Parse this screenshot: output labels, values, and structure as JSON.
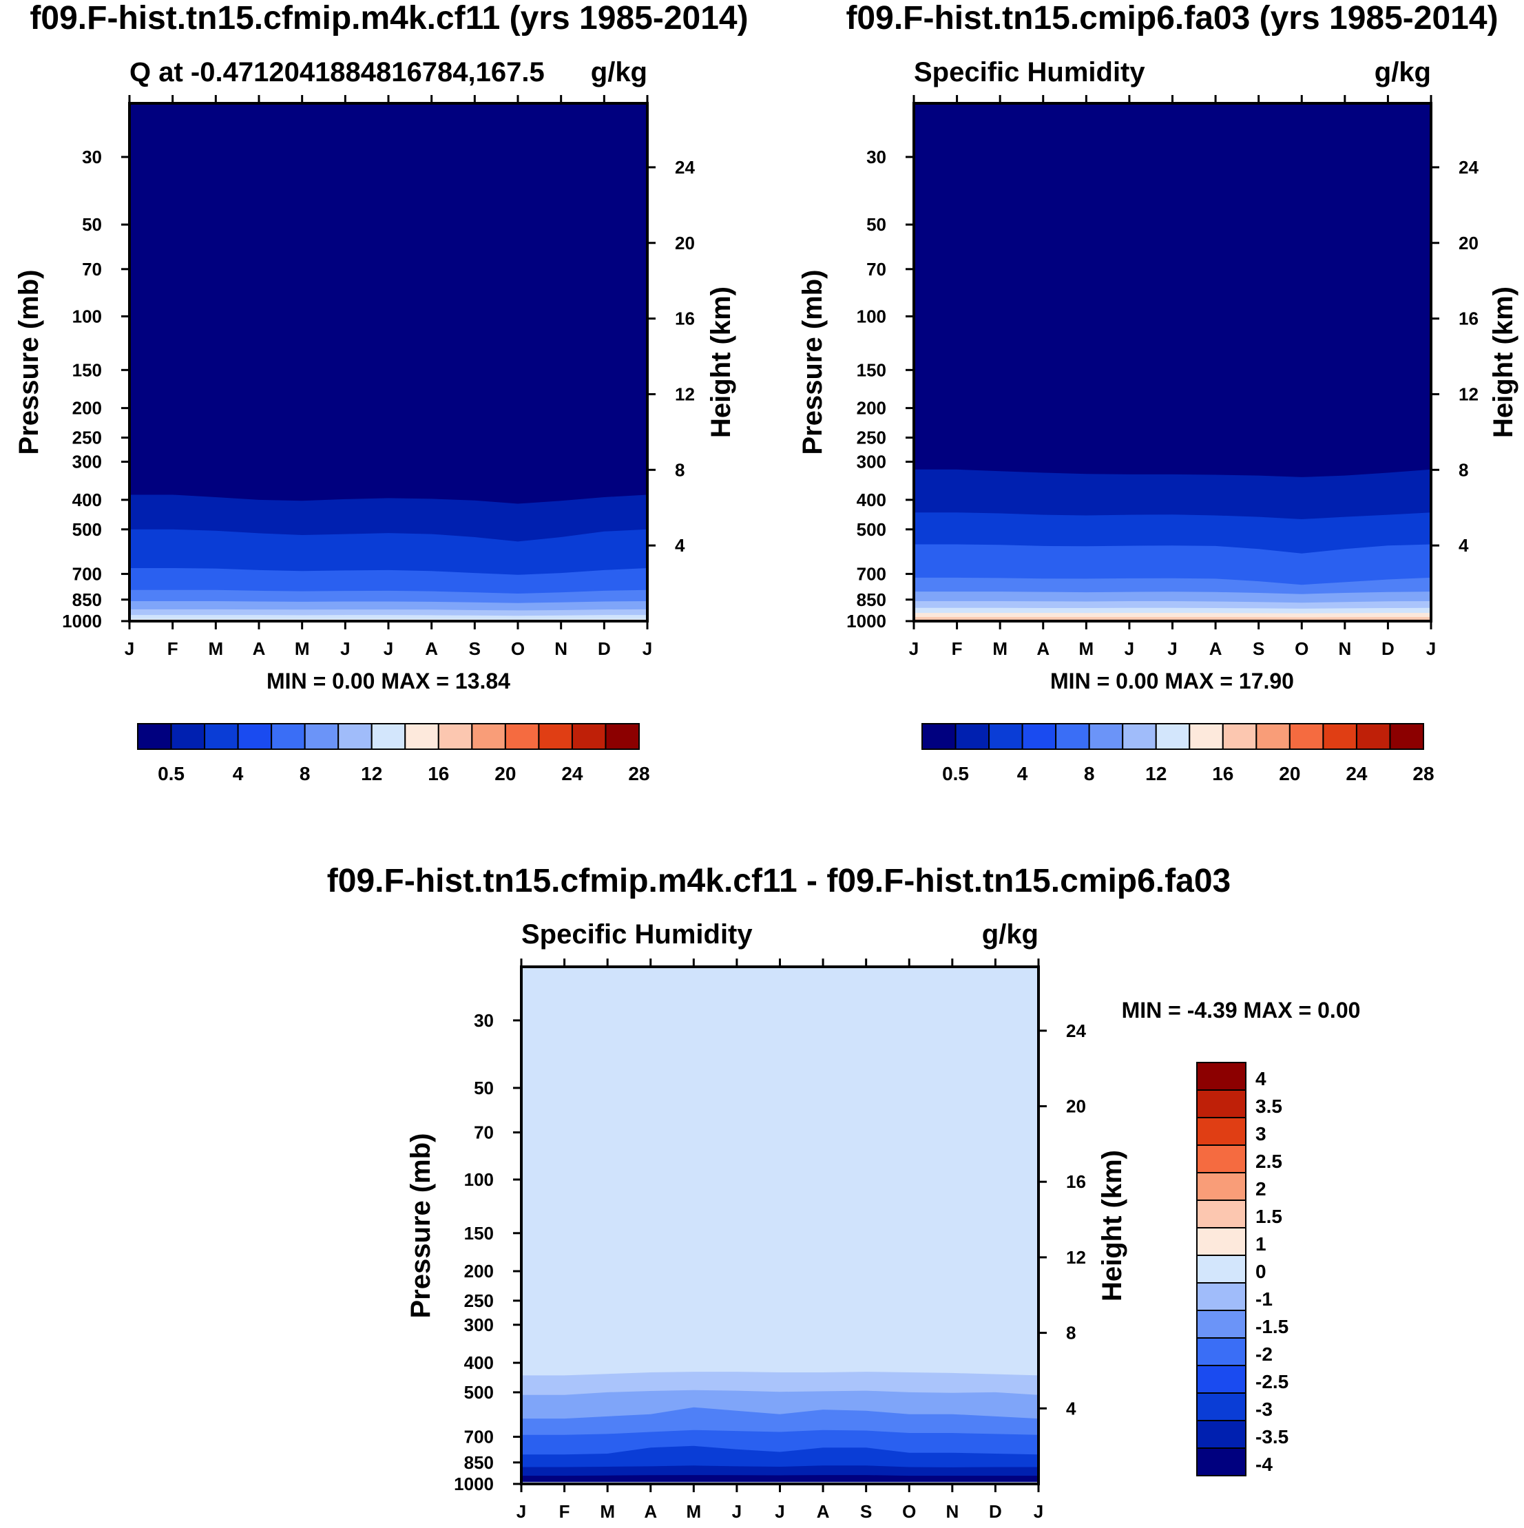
{
  "chart_data": [
    {
      "type": "heatmap",
      "title": "f09.F-hist.tn15.cfmip.m4k.cf11 (yrs 1985-2014)",
      "subtitle_left": "Q at -0.4712041884816784,167.5",
      "subtitle_right": "g/kg",
      "xlabel": "",
      "ylabel": "Pressure (mb)",
      "ylabel_right": "Height (km)",
      "x_ticks": [
        "J",
        "F",
        "M",
        "A",
        "M",
        "J",
        "J",
        "A",
        "S",
        "O",
        "N",
        "D",
        "J"
      ],
      "y_ticks": [
        30,
        50,
        70,
        100,
        150,
        200,
        250,
        300,
        400,
        500,
        700,
        850,
        1000
      ],
      "y_right_ticks": [
        24,
        20,
        16,
        12,
        8,
        4
      ],
      "ylim": [
        1000,
        20
      ],
      "y_scale": "log",
      "stats": "MIN =   0.00 MAX =  13.84",
      "color_levels": [
        0.5,
        2,
        4,
        6,
        8,
        10,
        12,
        14,
        16,
        18,
        20,
        22,
        24,
        26,
        28
      ],
      "colorbar_labels": [
        "0.5",
        "4",
        "8",
        "12",
        "16",
        "20",
        "24",
        "28"
      ],
      "colorbar_orientation": "horizontal",
      "level_boundaries_mb": [
        [
          385,
          385,
          392,
          400,
          403,
          398,
          395,
          397,
          402,
          412,
          403,
          392,
          385
        ],
        [
          500,
          500,
          505,
          515,
          522,
          518,
          514,
          518,
          530,
          548,
          530,
          508,
          500
        ],
        [
          670,
          670,
          672,
          680,
          685,
          682,
          680,
          685,
          695,
          705,
          695,
          680,
          670
        ],
        [
          790,
          790,
          790,
          795,
          798,
          796,
          795,
          798,
          805,
          812,
          805,
          795,
          790
        ],
        [
          860,
          860,
          860,
          862,
          864,
          862,
          862,
          864,
          868,
          872,
          868,
          862,
          860
        ],
        [
          915,
          915,
          915,
          916,
          917,
          916,
          916,
          917,
          920,
          922,
          920,
          916,
          915
        ],
        [
          955,
          955,
          955,
          955,
          956,
          955,
          955,
          956,
          958,
          960,
          958,
          955,
          955
        ],
        [
          985,
          985,
          985,
          985,
          985,
          985,
          985,
          985,
          986,
          987,
          986,
          985,
          985
        ]
      ],
      "level_colors": [
        "#00007f",
        "#0020b0",
        "#0a3dd6",
        "#2a60f0",
        "#4f80f7",
        "#7fa5f9",
        "#aac4fb",
        "#d0e3fc",
        "#f2f6fe"
      ]
    },
    {
      "type": "heatmap",
      "title": "f09.F-hist.tn15.cmip6.fa03 (yrs 1985-2014)",
      "subtitle_left": "Specific Humidity",
      "subtitle_right": "g/kg",
      "xlabel": "",
      "ylabel": "Pressure (mb)",
      "ylabel_right": "Height (km)",
      "x_ticks": [
        "J",
        "F",
        "M",
        "A",
        "M",
        "J",
        "J",
        "A",
        "S",
        "O",
        "N",
        "D",
        "J"
      ],
      "y_ticks": [
        30,
        50,
        70,
        100,
        150,
        200,
        250,
        300,
        400,
        500,
        700,
        850,
        1000
      ],
      "y_right_ticks": [
        24,
        20,
        16,
        12,
        8,
        4
      ],
      "ylim": [
        1000,
        20
      ],
      "y_scale": "log",
      "stats": "MIN =   0.00 MAX =  17.90",
      "color_levels": [
        0.5,
        2,
        4,
        6,
        8,
        10,
        12,
        14,
        16,
        18,
        20,
        22,
        24,
        26,
        28
      ],
      "colorbar_labels": [
        "0.5",
        "4",
        "8",
        "12",
        "16",
        "20",
        "24",
        "28"
      ],
      "colorbar_orientation": "horizontal",
      "level_boundaries_mb": [
        [
          318,
          318,
          322,
          326,
          329,
          330,
          330,
          331,
          333,
          337,
          333,
          326,
          318
        ],
        [
          440,
          440,
          443,
          448,
          450,
          448,
          447,
          450,
          455,
          463,
          455,
          448,
          440
        ],
        [
          560,
          560,
          562,
          567,
          568,
          566,
          565,
          567,
          580,
          600,
          580,
          565,
          560
        ],
        [
          720,
          720,
          722,
          725,
          726,
          724,
          723,
          726,
          740,
          760,
          745,
          730,
          720
        ],
        [
          800,
          800,
          800,
          802,
          804,
          802,
          801,
          803,
          808,
          815,
          808,
          803,
          800
        ],
        [
          860,
          860,
          860,
          861,
          862,
          860,
          860,
          862,
          866,
          870,
          866,
          861,
          860
        ],
        [
          905,
          905,
          905,
          906,
          906,
          905,
          905,
          906,
          908,
          910,
          908,
          906,
          905
        ],
        [
          940,
          940,
          940,
          940,
          941,
          940,
          940,
          941,
          942,
          943,
          942,
          940,
          940
        ],
        [
          970,
          970,
          970,
          970,
          970,
          970,
          970,
          970,
          971,
          972,
          971,
          970,
          970
        ],
        [
          990,
          990,
          990,
          990,
          990,
          990,
          990,
          990,
          990,
          991,
          990,
          990,
          990
        ]
      ],
      "level_colors": [
        "#00007f",
        "#0020b0",
        "#0a3dd6",
        "#2a60f0",
        "#4f80f7",
        "#7fa5f9",
        "#aac4fb",
        "#d0e3fc",
        "#fbe8dc",
        "#fac8b0",
        "#f2f6fe"
      ]
    },
    {
      "type": "heatmap",
      "title": "f09.F-hist.tn15.cfmip.m4k.cf11 - f09.F-hist.tn15.cmip6.fa03",
      "subtitle_left": "Specific Humidity",
      "subtitle_right": "g/kg",
      "xlabel": "",
      "ylabel": "Pressure (mb)",
      "ylabel_right": "Height (km)",
      "x_ticks": [
        "J",
        "F",
        "M",
        "A",
        "M",
        "J",
        "J",
        "A",
        "S",
        "O",
        "N",
        "D",
        "J"
      ],
      "y_ticks": [
        30,
        50,
        70,
        100,
        150,
        200,
        250,
        300,
        400,
        500,
        700,
        850,
        1000
      ],
      "y_right_ticks": [
        24,
        20,
        16,
        12,
        8,
        4
      ],
      "ylim": [
        1000,
        20
      ],
      "y_scale": "log",
      "stats": "MIN =  -4.39 MAX =   0.00",
      "color_levels": [
        -4,
        -3.5,
        -3,
        -2.5,
        -2,
        -1.5,
        -1,
        0,
        1,
        1.5,
        2,
        2.5,
        3,
        3.5,
        4
      ],
      "colorbar_labels": [
        "4",
        "3.5",
        "3",
        "2.5",
        "2",
        "1.5",
        "1",
        "0",
        "-1",
        "-1.5",
        "-2",
        "-2.5",
        "-3",
        "-3.5",
        "-4"
      ],
      "colorbar_orientation": "vertical",
      "level_boundaries_mb": [
        [
          440,
          440,
          435,
          430,
          428,
          428,
          430,
          430,
          428,
          430,
          432,
          436,
          440
        ],
        [
          510,
          510,
          500,
          495,
          492,
          494,
          498,
          496,
          494,
          500,
          502,
          500,
          510
        ],
        [
          610,
          610,
          600,
          590,
          560,
          575,
          590,
          570,
          575,
          590,
          590,
          600,
          610
        ],
        [
          690,
          690,
          685,
          675,
          665,
          670,
          675,
          665,
          668,
          680,
          680,
          685,
          690
        ],
        [
          800,
          800,
          795,
          760,
          750,
          770,
          785,
          760,
          760,
          790,
          790,
          795,
          800
        ],
        [
          880,
          880,
          878,
          875,
          870,
          875,
          878,
          870,
          870,
          880,
          882,
          880,
          880
        ],
        [
          940,
          940,
          938,
          936,
          935,
          936,
          937,
          935,
          935,
          940,
          940,
          940,
          940
        ],
        [
          985,
          985,
          985,
          985,
          985,
          985,
          985,
          985,
          985,
          985,
          985,
          985,
          985
        ]
      ],
      "level_colors": [
        "#d0e3fc",
        "#aac4fb",
        "#7fa5f9",
        "#4f80f7",
        "#2a60f0",
        "#0a3dd6",
        "#0020b0",
        "#00007f",
        "#d0e3fc"
      ]
    }
  ],
  "colorbars": {
    "horizontal_colors": [
      "#00007f",
      "#0020b0",
      "#0a3dd6",
      "#1a4bf0",
      "#3a6ef6",
      "#6b94f8",
      "#a0bcfa",
      "#d3e6fc",
      "#fde9dc",
      "#fcc7b0",
      "#f99d78",
      "#f56b40",
      "#e03e14",
      "#bf2008",
      "#8c0000"
    ],
    "vertical_colors_top_to_bottom": [
      "#8c0000",
      "#bf2008",
      "#e03e14",
      "#f56b40",
      "#f99d78",
      "#fcc7b0",
      "#fde9dc",
      "#d3e6fc",
      "#a0bcfa",
      "#6b94f8",
      "#3a6ef6",
      "#1a4bf0",
      "#0a3dd6",
      "#0020b0",
      "#00007f"
    ]
  }
}
